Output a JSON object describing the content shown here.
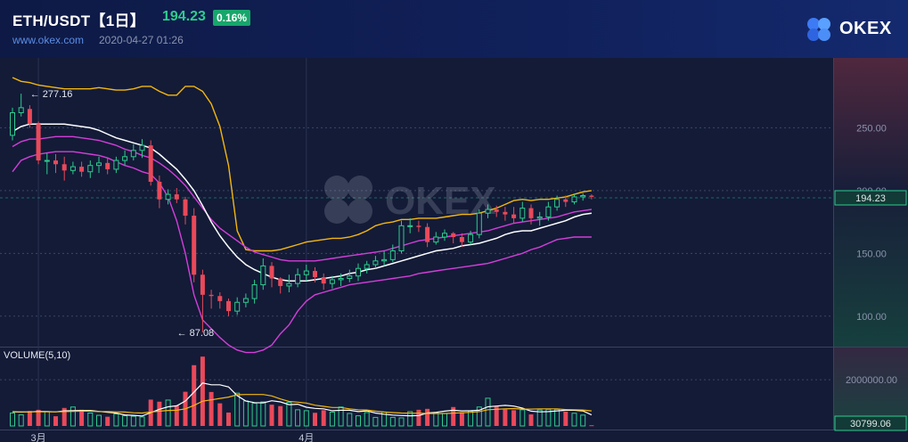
{
  "header": {
    "title": "ETH/USDT【1日】",
    "price": "194.23",
    "change": "0.16%",
    "site": "www.okex.com",
    "datetime": "2020-04-27 01:26",
    "logo_text": "OKEX",
    "watermark_text": "OKEX"
  },
  "colors": {
    "up": "#2ecc8e",
    "down": "#e9495a",
    "boll_upper": "#f5b70e",
    "boll_mid": "#ffffff",
    "boll_band": "#d43ed9",
    "bg": "#131b37"
  },
  "chart_data": [
    {
      "type": "candlestick",
      "name": "price",
      "ylim": [
        75,
        295
      ],
      "y_ticks": [
        100,
        150,
        200,
        250
      ],
      "y_tick_labels": [
        "100.00",
        "150.00",
        "200.00",
        "250.00"
      ],
      "last_price_label": "194.23",
      "x_ticks": [
        {
          "index": 3,
          "label": "3月"
        },
        {
          "index": 34,
          "label": "4月"
        }
      ],
      "annotations": [
        {
          "index": 1,
          "value": 277.16,
          "label": "← 277.16"
        },
        {
          "index": 18,
          "value": 87.08,
          "label": "← 87.08"
        }
      ],
      "candles": [
        [
          244,
          262,
          240,
          266
        ],
        [
          262,
          266,
          259,
          277.16
        ],
        [
          265,
          253,
          250,
          268
        ],
        [
          253,
          224,
          221,
          255
        ],
        [
          224,
          224,
          213,
          230
        ],
        [
          224,
          221,
          214,
          229
        ],
        [
          221,
          216,
          208,
          227
        ],
        [
          216,
          219,
          213,
          223
        ],
        [
          219,
          215,
          211,
          223
        ],
        [
          215,
          220,
          210,
          224
        ],
        [
          220,
          222,
          214,
          227
        ],
        [
          222,
          217,
          213,
          226
        ],
        [
          217,
          224,
          214,
          227
        ],
        [
          224,
          227,
          220,
          232
        ],
        [
          227,
          232,
          224,
          237
        ],
        [
          232,
          236,
          226,
          241
        ],
        [
          236,
          207,
          204,
          240
        ],
        [
          207,
          193,
          186,
          212
        ],
        [
          193,
          197,
          189,
          201
        ],
        [
          197,
          193,
          190,
          202
        ],
        [
          193,
          180,
          173,
          195
        ],
        [
          180,
          133,
          127,
          186
        ],
        [
          133,
          117,
          87.08,
          137
        ],
        [
          117,
          116,
          106,
          121
        ],
        [
          116,
          112,
          106,
          119
        ],
        [
          112,
          104,
          100,
          114
        ],
        [
          104,
          111,
          101,
          115
        ],
        [
          111,
          114,
          107,
          118
        ],
        [
          114,
          125,
          110,
          129
        ],
        [
          125,
          140,
          121,
          146
        ],
        [
          140,
          130,
          123,
          143
        ],
        [
          130,
          124,
          118,
          131
        ],
        [
          124,
          126,
          119,
          133
        ],
        [
          126,
          133,
          123,
          138
        ],
        [
          133,
          136,
          128,
          141
        ],
        [
          136,
          131,
          127,
          139
        ],
        [
          131,
          126,
          121,
          134
        ],
        [
          126,
          129,
          122,
          132
        ],
        [
          129,
          130,
          124,
          134
        ],
        [
          130,
          132,
          127,
          137
        ],
        [
          132,
          138,
          128,
          142
        ],
        [
          138,
          141,
          134,
          144
        ],
        [
          141,
          144,
          138,
          148
        ],
        [
          144,
          145,
          140,
          152
        ],
        [
          145,
          152,
          143,
          157
        ],
        [
          152,
          172,
          150,
          176
        ],
        [
          172,
          172,
          166,
          178
        ],
        [
          172,
          171,
          167,
          176
        ],
        [
          171,
          159,
          155,
          174
        ],
        [
          159,
          163,
          157,
          167
        ],
        [
          163,
          166,
          160,
          169
        ],
        [
          166,
          163,
          158,
          167
        ],
        [
          163,
          159,
          155,
          166
        ],
        [
          159,
          165,
          157,
          168
        ],
        [
          165,
          182,
          162,
          185
        ],
        [
          182,
          185,
          178,
          189
        ],
        [
          185,
          183,
          179,
          188
        ],
        [
          183,
          181,
          176,
          187
        ],
        [
          181,
          178,
          174,
          187
        ],
        [
          178,
          186,
          175,
          191
        ],
        [
          186,
          178,
          173,
          189
        ],
        [
          178,
          179,
          172,
          183
        ],
        [
          179,
          187,
          176,
          191
        ],
        [
          187,
          193,
          184,
          196
        ],
        [
          193,
          191,
          187,
          196
        ],
        [
          191,
          195,
          189,
          197
        ],
        [
          195,
          196,
          192,
          198
        ],
        [
          196,
          195,
          193,
          197
        ]
      ],
      "boll_upper": [
        290,
        287,
        286,
        284,
        283,
        282,
        281,
        281,
        281,
        281,
        282,
        281,
        280,
        280,
        281,
        283,
        283,
        279,
        276,
        276,
        283,
        283,
        279,
        269,
        251,
        220,
        168,
        153,
        152,
        152,
        152,
        153,
        155,
        157,
        159,
        160,
        161,
        162,
        162,
        163,
        165,
        168,
        172,
        174,
        175,
        177,
        177,
        178,
        178,
        178,
        179,
        180,
        181,
        181,
        182,
        184,
        186,
        189,
        192,
        193,
        192,
        193,
        193,
        194,
        195,
        197,
        199,
        200
      ],
      "boll_mid": [
        247,
        251,
        253,
        253,
        253,
        253,
        253,
        252,
        251,
        250,
        248,
        245,
        242,
        240,
        238,
        236,
        234,
        229,
        223,
        217,
        209,
        200,
        188,
        175,
        164,
        155,
        147,
        141,
        137,
        134,
        131,
        129,
        128,
        128,
        128,
        129,
        130,
        131,
        132,
        134,
        135,
        137,
        138,
        140,
        142,
        144,
        146,
        148,
        150,
        152,
        153,
        154,
        156,
        157,
        158,
        160,
        162,
        165,
        167,
        168,
        168,
        170,
        172,
        174,
        176,
        179,
        181,
        182
      ],
      "boll_mid_ext": [
        {
          "index": 0,
          "value": 247
        },
        {
          "index": 1,
          "value": 250
        }
      ],
      "boll_band_upper": [
        235,
        239,
        241,
        241,
        242,
        243,
        243,
        243,
        242,
        241,
        240,
        238,
        236,
        233,
        231,
        228,
        226,
        222,
        217,
        211,
        204,
        195,
        186,
        177,
        170,
        165,
        160,
        155,
        151,
        149,
        147,
        145,
        144,
        144,
        144,
        144,
        145,
        146,
        147,
        148,
        149,
        150,
        151,
        152,
        154,
        156,
        158,
        160,
        161,
        162,
        163,
        164,
        165,
        166,
        167,
        168,
        170,
        172,
        174,
        175,
        176,
        177,
        178,
        179,
        181,
        183,
        184,
        185
      ],
      "boll_lower": [
        215,
        224,
        227,
        229,
        230,
        231,
        231,
        231,
        230,
        229,
        228,
        226,
        223,
        220,
        218,
        215,
        213,
        206,
        195,
        176,
        150,
        117,
        97,
        90,
        83,
        77,
        73,
        71,
        71,
        73,
        77,
        86,
        93,
        104,
        112,
        117,
        119,
        121,
        123,
        125,
        126,
        127,
        128,
        129,
        130,
        131,
        132,
        134,
        135,
        136,
        137,
        138,
        139,
        140,
        141,
        142,
        144,
        146,
        148,
        150,
        153,
        155,
        158,
        161,
        162,
        163,
        163,
        163
      ]
    },
    {
      "type": "bar",
      "name": "VOLUME(5,10)",
      "ylim": [
        0,
        3200000
      ],
      "y_ticks": [
        2000000
      ],
      "y_tick_labels": [
        "2000000.00"
      ],
      "last_volume_label": "30799.06",
      "volume": [
        560000,
        480000,
        650000,
        700000,
        620000,
        420000,
        780000,
        820000,
        700000,
        560000,
        460000,
        400000,
        520000,
        440000,
        420000,
        390000,
        1140000,
        1050000,
        1120000,
        880000,
        1480000,
        2630000,
        3000000,
        1470000,
        980000,
        580000,
        1420000,
        1080000,
        980000,
        1040000,
        920000,
        860000,
        1020000,
        700000,
        660000,
        570000,
        680000,
        600000,
        820000,
        540000,
        440000,
        580000,
        370000,
        600000,
        370000,
        350000,
        620000,
        700000,
        740000,
        560000,
        540000,
        820000,
        600000,
        640000,
        820000,
        1200000,
        840000,
        720000,
        680000,
        700000,
        500000,
        690000,
        720000,
        720000,
        620000,
        550000,
        470000,
        30799
      ],
      "ma5": [
        610000,
        600000,
        610000,
        630000,
        620000,
        610000,
        650000,
        660000,
        670000,
        670000,
        630000,
        590000,
        560000,
        480000,
        460000,
        430000,
        580000,
        720000,
        830000,
        870000,
        1080000,
        1460000,
        1860000,
        1780000,
        1780000,
        1690000,
        1310000,
        1080000,
        1010000,
        1000000,
        1090000,
        1040000,
        920000,
        940000,
        810000,
        760000,
        740000,
        660000,
        680000,
        680000,
        620000,
        650000,
        560000,
        510000,
        470000,
        450000,
        440000,
        450000,
        560000,
        590000,
        640000,
        680000,
        650000,
        660000,
        680000,
        830000,
        860000,
        890000,
        860000,
        770000,
        640000,
        610000,
        620000,
        650000,
        680000,
        680000,
        650000,
        480000
      ],
      "ma10": [
        620000,
        610000,
        610000,
        610000,
        610000,
        610000,
        620000,
        630000,
        640000,
        640000,
        620000,
        620000,
        610000,
        600000,
        570000,
        560000,
        600000,
        640000,
        670000,
        680000,
        740000,
        890000,
        1070000,
        1130000,
        1190000,
        1250000,
        1350000,
        1360000,
        1360000,
        1360000,
        1300000,
        1170000,
        1060000,
        1030000,
        990000,
        900000,
        850000,
        800000,
        800000,
        740000,
        700000,
        690000,
        640000,
        600000,
        580000,
        560000,
        550000,
        550000,
        540000,
        540000,
        540000,
        550000,
        570000,
        590000,
        620000,
        700000,
        720000,
        740000,
        750000,
        730000,
        730000,
        740000,
        740000,
        740000,
        710000,
        700000,
        690000,
        650000
      ]
    }
  ]
}
